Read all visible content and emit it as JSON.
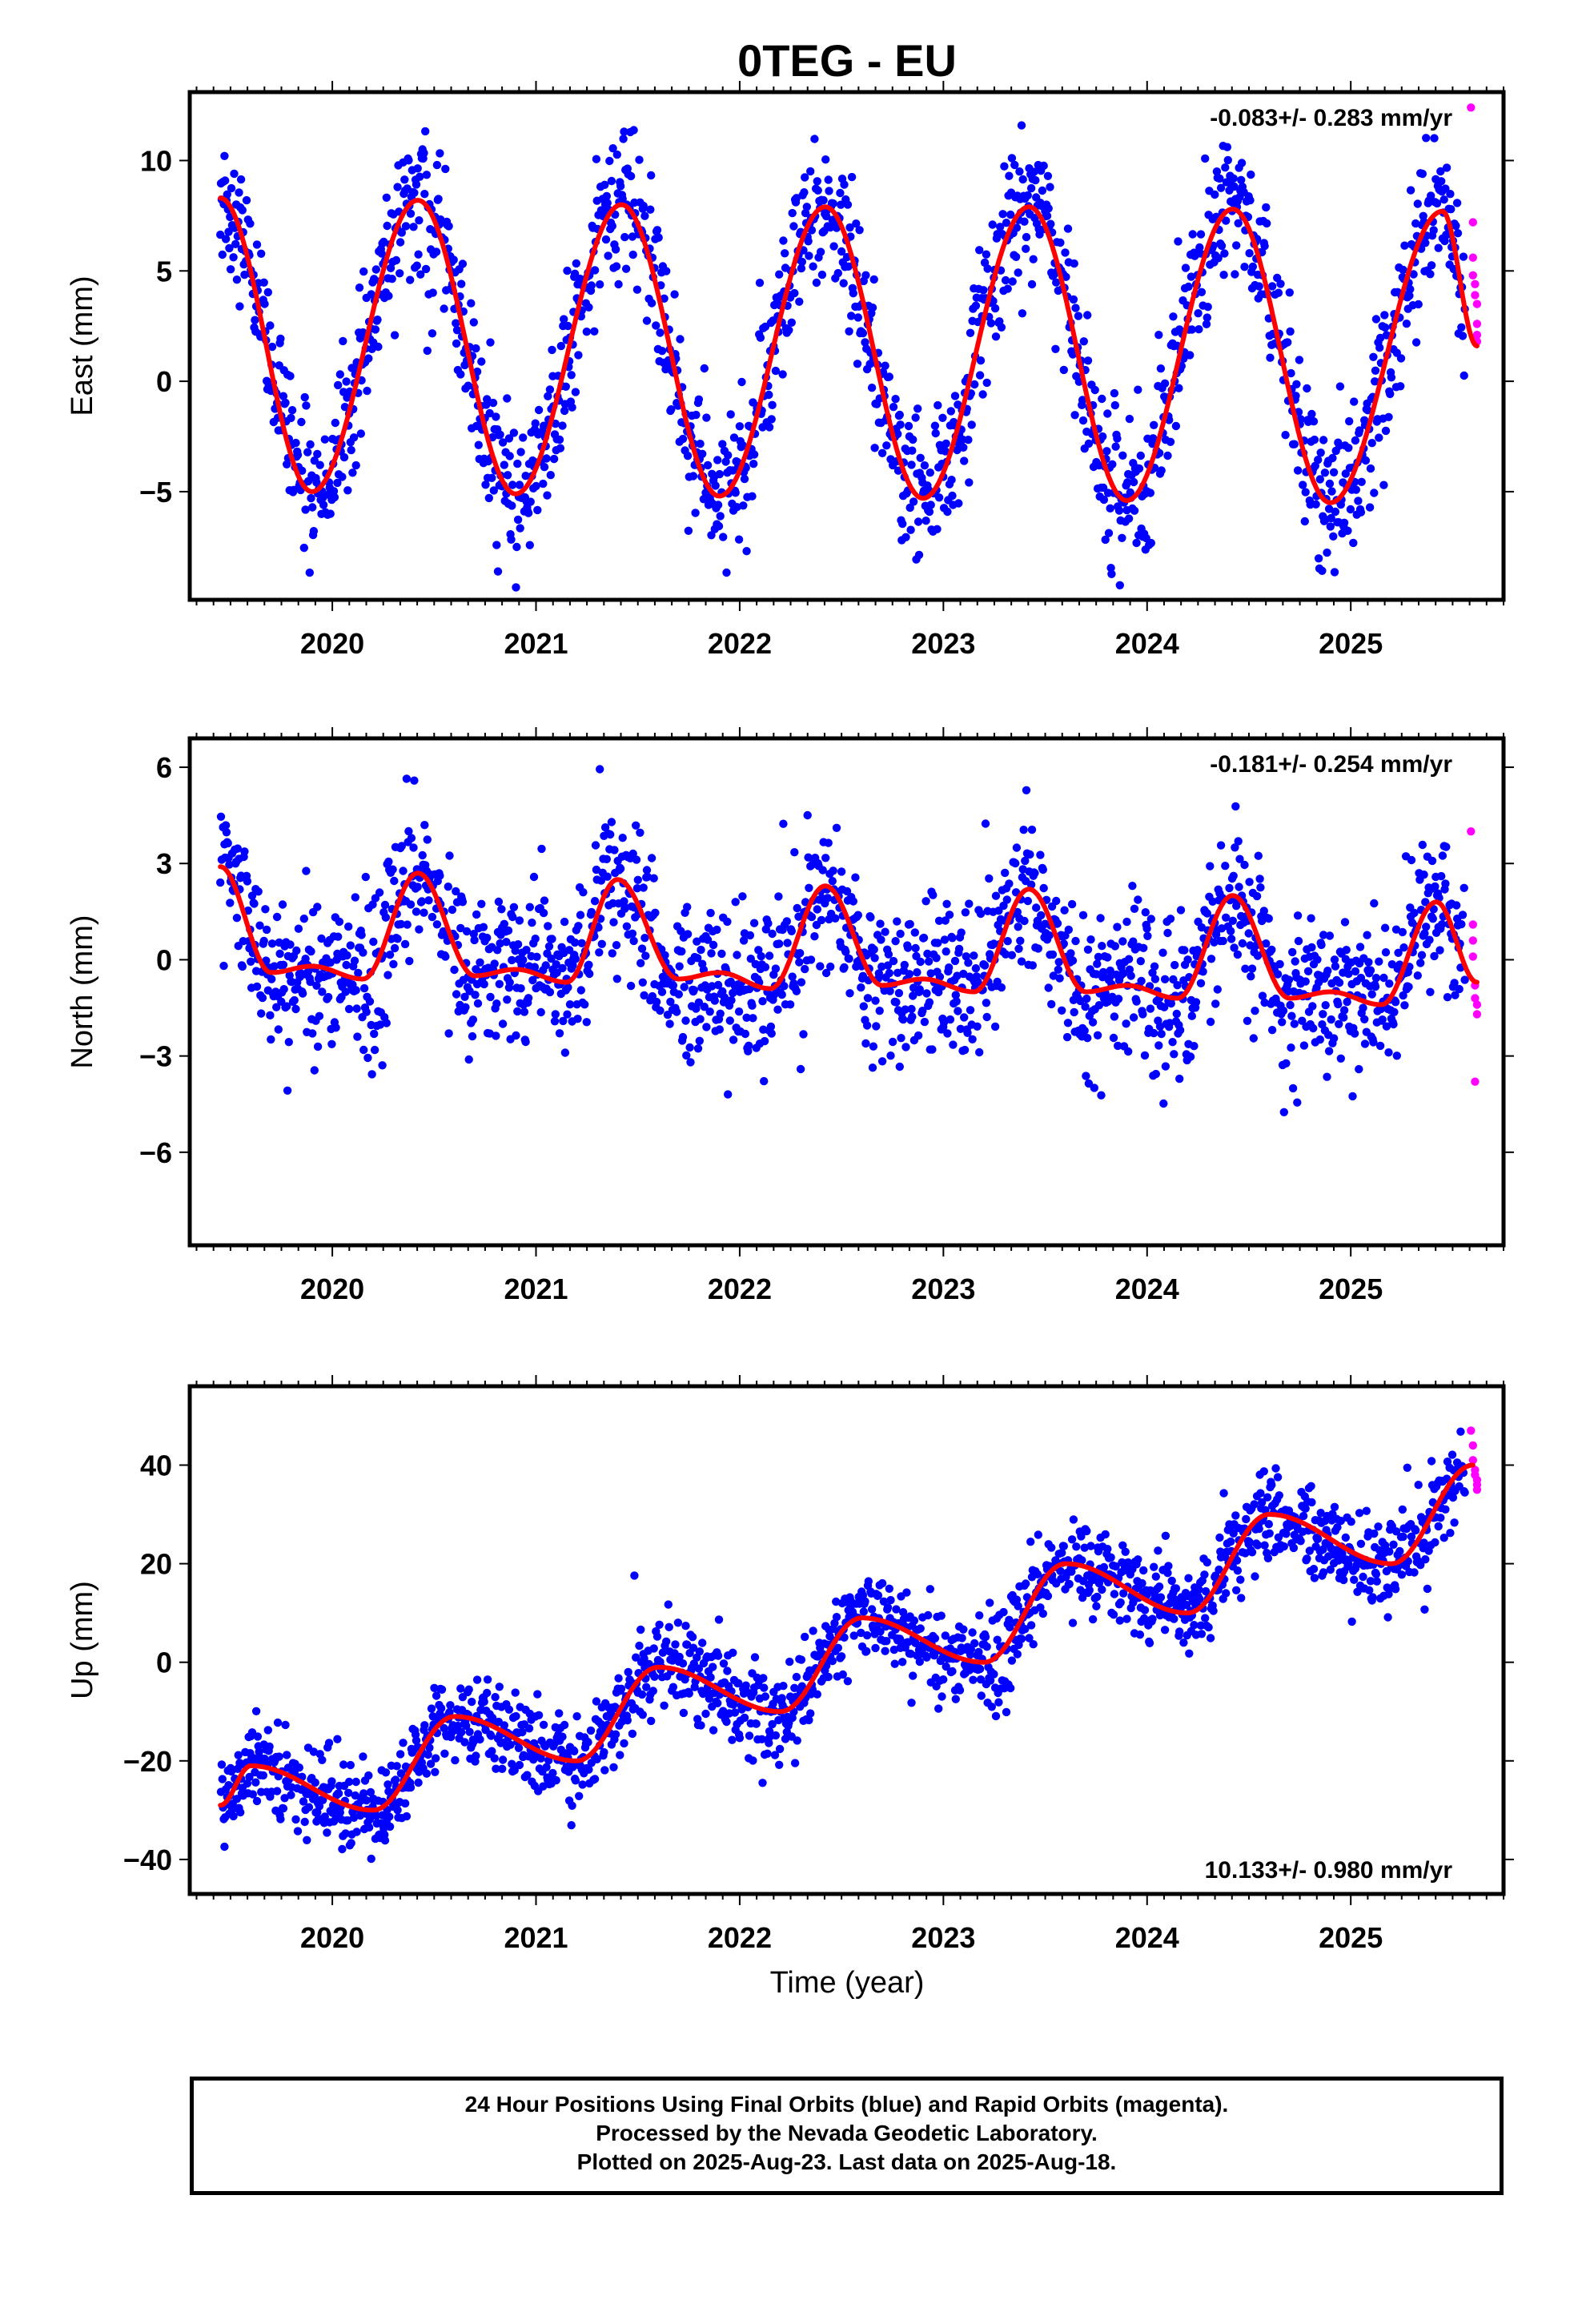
{
  "title": "0TEG - EU",
  "xlabel": "Time (year)",
  "colors": {
    "final": "#0000ff",
    "rapid": "#ff00ff",
    "model": "#ff0000",
    "frame": "#000000"
  },
  "footer": {
    "line1": "24 Hour Positions Using Final Orbits (blue) and Rapid Orbits (magenta).",
    "line2": "Processed by the Nevada Geodetic Laboratory.",
    "line3": "Plotted on 2025-Aug-23. Last data on 2025-Aug-18."
  },
  "chart_data": [
    {
      "type": "scatter",
      "id": "east",
      "ylabel": "East (mm)",
      "rate_label": "-0.083+/- 0.283 mm/yr",
      "rate_position": "top-right",
      "xlim": [
        2019.3,
        2025.75
      ],
      "ylim": [
        -9.9,
        13.1
      ],
      "xticks": [
        2020,
        2021,
        2022,
        2023,
        2024,
        2025
      ],
      "yticks": [
        -5,
        0,
        5,
        10
      ],
      "fit_anchors_t": [
        2019.45,
        2019.9,
        2020.42,
        2020.9,
        2021.42,
        2021.9,
        2022.42,
        2022.9,
        2023.42,
        2023.9,
        2024.42,
        2024.9,
        2025.45,
        2025.62
      ],
      "fit_anchors_v": [
        8.3,
        -5.0,
        8.2,
        -5.1,
        8.0,
        -5.2,
        7.9,
        -5.3,
        7.9,
        -5.4,
        7.8,
        -5.5,
        7.7,
        1.6
      ],
      "series": [
        {
          "name": "Final Orbits (blue)",
          "start": 2019.45,
          "end": 2025.56,
          "model": "fit",
          "scatter": 1.6
        },
        {
          "name": "Rapid Orbits (magenta)",
          "points": [
            [
              2025.59,
              12.4
            ],
            [
              2025.6,
              7.2
            ],
            [
              2025.6,
              5.6
            ],
            [
              2025.6,
              4.8
            ],
            [
              2025.61,
              4.4
            ],
            [
              2025.61,
              3.9
            ],
            [
              2025.62,
              3.5
            ],
            [
              2025.62,
              2.6
            ],
            [
              2025.62,
              2.1
            ],
            [
              2025.62,
              1.8
            ]
          ]
        },
        {
          "name": "model",
          "style": "line"
        }
      ]
    },
    {
      "type": "scatter",
      "id": "north",
      "ylabel": "North (mm)",
      "rate_label": "-0.181+/- 0.254 mm/yr",
      "rate_position": "top-right",
      "xlim": [
        2019.3,
        2025.75
      ],
      "ylim": [
        -8.9,
        6.9
      ],
      "xticks": [
        2020,
        2021,
        2022,
        2023,
        2024,
        2025
      ],
      "yticks": [
        -6,
        -3,
        0,
        3,
        6
      ],
      "fit_anchors_t": [
        2019.45,
        2019.7,
        2019.9,
        2020.15,
        2020.42,
        2020.7,
        2020.9,
        2021.15,
        2021.4,
        2021.7,
        2021.9,
        2022.15,
        2022.42,
        2022.7,
        2022.9,
        2023.15,
        2023.42,
        2023.7,
        2023.9,
        2024.15,
        2024.42,
        2024.7,
        2024.9,
        2025.15,
        2025.42,
        2025.62
      ],
      "fit_anchors_v": [
        2.9,
        -0.4,
        -0.2,
        -0.6,
        2.7,
        -0.5,
        -0.3,
        -0.7,
        2.5,
        -0.6,
        -0.4,
        -0.9,
        2.3,
        -0.8,
        -0.6,
        -1.0,
        2.2,
        -1.0,
        -0.8,
        -1.2,
        2.0,
        -1.2,
        -1.0,
        -1.4,
        1.8,
        -0.7
      ],
      "series": [
        {
          "name": "Final Orbits (blue)",
          "start": 2019.45,
          "end": 2025.56,
          "model": "fit",
          "scatter": 1.2
        },
        {
          "name": "Rapid Orbits (magenta)",
          "points": [
            [
              2025.59,
              4.0
            ],
            [
              2025.6,
              1.1
            ],
            [
              2025.6,
              0.6
            ],
            [
              2025.6,
              0.1
            ],
            [
              2025.61,
              -0.8
            ],
            [
              2025.61,
              -1.2
            ],
            [
              2025.62,
              -1.4
            ],
            [
              2025.62,
              -1.7
            ],
            [
              2025.61,
              -3.8
            ]
          ]
        },
        {
          "name": "model",
          "style": "line"
        }
      ]
    },
    {
      "type": "scatter",
      "id": "up",
      "ylabel": "Up (mm)",
      "rate_label": "10.133+/- 0.980 mm/yr",
      "rate_position": "bottom-right",
      "xlim": [
        2019.3,
        2025.75
      ],
      "ylim": [
        -47,
        56
      ],
      "xticks": [
        2020,
        2021,
        2022,
        2023,
        2024,
        2025
      ],
      "yticks": [
        -40,
        -20,
        0,
        20,
        40
      ],
      "fit_anchors_t": [
        2019.45,
        2019.6,
        2020.2,
        2020.6,
        2021.2,
        2021.6,
        2022.2,
        2022.6,
        2023.2,
        2023.6,
        2024.2,
        2024.6,
        2025.2,
        2025.6
      ],
      "fit_anchors_v": [
        -29,
        -21,
        -30,
        -11,
        -20,
        -1,
        -10,
        9,
        0,
        20,
        10,
        30,
        20,
        40
      ],
      "series": [
        {
          "name": "Final Orbits (blue)",
          "start": 2019.45,
          "end": 2025.56,
          "model": "fit",
          "scatter": 4.5
        },
        {
          "name": "Rapid Orbits (magenta)",
          "points": [
            [
              2025.59,
              47
            ],
            [
              2025.6,
              44
            ],
            [
              2025.6,
              41
            ],
            [
              2025.61,
              39
            ],
            [
              2025.61,
              38
            ],
            [
              2025.62,
              37
            ],
            [
              2025.62,
              36
            ],
            [
              2025.62,
              35
            ]
          ]
        },
        {
          "name": "model",
          "style": "line"
        }
      ]
    }
  ]
}
